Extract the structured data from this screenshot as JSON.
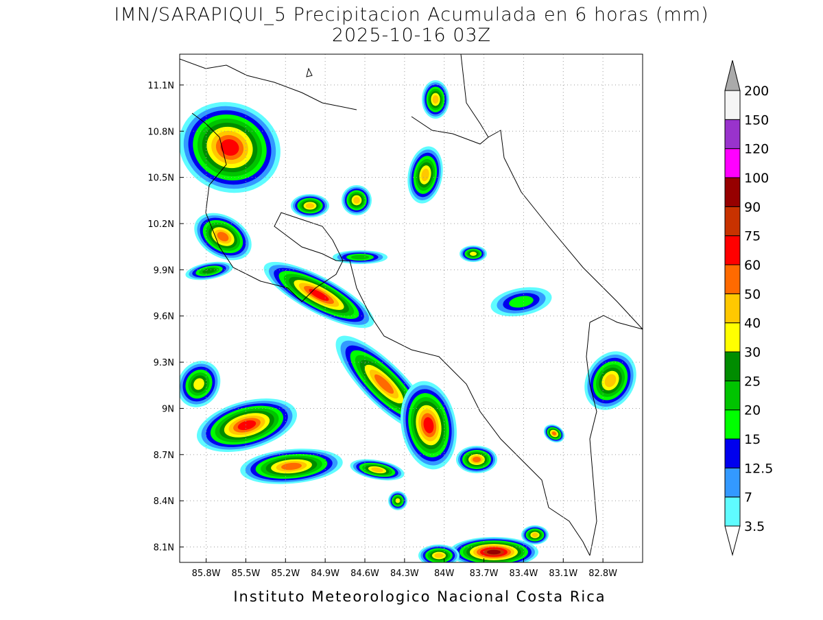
{
  "chart_data": {
    "type": "contour-map",
    "title": "IMN/SARAPIQUI_5 Precipitacion Acumulada en 6 horas (mm)",
    "subtitle": "2025-10-16 03Z",
    "footer": "Instituto Meteorologico Nacional Costa Rica",
    "xlim": [
      -86.0,
      -82.5
    ],
    "ylim": [
      8.0,
      11.3
    ],
    "xticks": [
      {
        "value": -85.8,
        "label": "85.8W"
      },
      {
        "value": -85.5,
        "label": "85.5W"
      },
      {
        "value": -85.2,
        "label": "85.2W"
      },
      {
        "value": -84.9,
        "label": "84.9W"
      },
      {
        "value": -84.6,
        "label": "84.6W"
      },
      {
        "value": -84.3,
        "label": "84.3W"
      },
      {
        "value": -84.0,
        "label": "84W"
      },
      {
        "value": -83.7,
        "label": "83.7W"
      },
      {
        "value": -83.4,
        "label": "83.4W"
      },
      {
        "value": -83.1,
        "label": "83.1W"
      },
      {
        "value": -82.8,
        "label": "82.8W"
      }
    ],
    "yticks": [
      {
        "value": 8.1,
        "label": "8.1N"
      },
      {
        "value": 8.4,
        "label": "8.4N"
      },
      {
        "value": 8.7,
        "label": "8.7N"
      },
      {
        "value": 9.0,
        "label": "9N"
      },
      {
        "value": 9.3,
        "label": "9.3N"
      },
      {
        "value": 9.6,
        "label": "9.6N"
      },
      {
        "value": 9.9,
        "label": "9.9N"
      },
      {
        "value": 10.2,
        "label": "10.2N"
      },
      {
        "value": 10.5,
        "label": "10.5N"
      },
      {
        "value": 10.8,
        "label": "10.8N"
      },
      {
        "value": 11.1,
        "label": "11.1N"
      }
    ],
    "grid": true,
    "levels": [
      3.5,
      7,
      12.5,
      15,
      20,
      25,
      30,
      40,
      50,
      60,
      75,
      90,
      100,
      120,
      150,
      200
    ],
    "colors": [
      "#ffffff",
      "#5ffcff",
      "#3399ff",
      "#0000ee",
      "#00ff00",
      "#00c400",
      "#008c00",
      "#ffff00",
      "#ffc800",
      "#ff6a00",
      "#ff0000",
      "#c83200",
      "#960000",
      "#ff00ff",
      "#9933cc",
      "#f5f5f5",
      "#aaaaaa"
    ]
  }
}
